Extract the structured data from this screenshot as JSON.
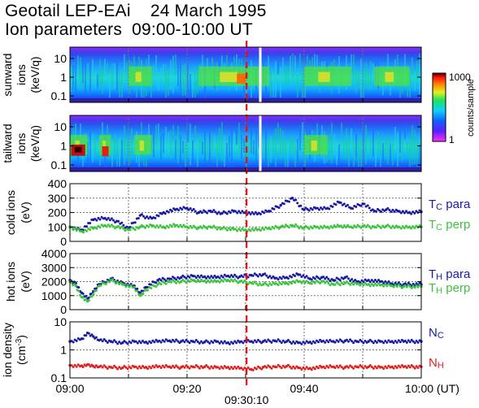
{
  "title": {
    "line1_instrument": "Geotail LEP-EAi",
    "line1_date": "24 March 1995",
    "line2_label": "Ion parameters",
    "line2_range": "09:00-10:00 UT"
  },
  "colors": {
    "para": "#1a1aa6",
    "perp": "#3cc43c",
    "n_cold": "#1a1aa6",
    "n_hot": "#e02020",
    "event_line": "#e01010"
  },
  "chart_data": [
    {
      "type": "heatmap",
      "panel": "sunward",
      "ylabel": [
        "sunward",
        "ions",
        "(keV/q)"
      ],
      "yscale": "log",
      "yticks": [
        "10",
        "1",
        "0.1"
      ],
      "x_range_min": [
        0,
        60
      ],
      "colorbar": {
        "label": "counts/sample",
        "ticks": [
          "1000",
          "1"
        ],
        "scale": "log",
        "range": [
          1,
          1000
        ]
      },
      "enhancement_min": [
        [
          10,
          14
        ],
        [
          22,
          34
        ],
        [
          40,
          48
        ],
        [
          52,
          58
        ]
      ]
    },
    {
      "type": "heatmap",
      "panel": "tailward",
      "ylabel": [
        "tailward",
        "ions",
        "(keV/q)"
      ],
      "yscale": "log",
      "yticks": [
        "10",
        "1",
        "0.1"
      ],
      "x_range_min": [
        0,
        60
      ],
      "enhancement_min": [
        [
          0,
          3
        ],
        [
          5,
          7
        ],
        [
          11,
          14
        ],
        [
          40,
          44
        ]
      ]
    },
    {
      "type": "scatter",
      "panel": "cold",
      "ylabel": [
        "cold ions",
        "(eV)"
      ],
      "ylim": [
        0,
        400
      ],
      "yticks": [
        "400",
        "300",
        "200",
        "100",
        "0"
      ],
      "series": [
        {
          "name": "Tc para",
          "sym": "T",
          "sub": "C",
          "suffix": "para",
          "color": "#1a1aa6",
          "x": [
            0,
            2,
            4,
            6,
            8,
            10,
            12,
            14,
            16,
            18,
            20,
            22,
            24,
            26,
            28,
            30,
            32,
            34,
            36,
            38,
            40,
            42,
            44,
            46,
            48,
            50,
            52,
            54,
            56,
            58,
            60
          ],
          "y": [
            100,
            80,
            150,
            160,
            140,
            90,
            180,
            160,
            200,
            220,
            230,
            200,
            210,
            195,
            210,
            200,
            190,
            210,
            250,
            300,
            220,
            230,
            230,
            270,
            230,
            260,
            210,
            220,
            210,
            200,
            205
          ]
        },
        {
          "name": "Tc perp",
          "sym": "T",
          "sub": "C",
          "suffix": "perp",
          "color": "#3cc43c",
          "x": [
            0,
            2,
            4,
            6,
            8,
            10,
            12,
            14,
            16,
            18,
            20,
            22,
            24,
            26,
            28,
            30,
            32,
            34,
            36,
            38,
            40,
            42,
            44,
            46,
            48,
            50,
            52,
            54,
            56,
            58,
            60
          ],
          "y": [
            100,
            70,
            90,
            110,
            100,
            80,
            100,
            110,
            100,
            110,
            100,
            95,
            100,
            90,
            85,
            80,
            80,
            90,
            100,
            110,
            95,
            100,
            100,
            105,
            100,
            105,
            100,
            105,
            100,
            100,
            100
          ]
        }
      ]
    },
    {
      "type": "scatter",
      "panel": "hot",
      "ylabel": [
        "hot ions",
        "(eV)"
      ],
      "ylim": [
        0,
        4000
      ],
      "yticks": [
        "4000",
        "3000",
        "2000",
        "1000",
        "0"
      ],
      "series": [
        {
          "name": "TH para",
          "sym": "T",
          "sub": "H",
          "suffix": "para",
          "color": "#1a1aa6",
          "x": [
            0,
            1,
            2,
            3,
            4,
            5,
            7,
            9,
            11,
            12,
            13,
            15,
            17,
            19,
            21,
            23,
            25,
            27,
            29,
            31,
            33,
            35,
            37,
            39,
            41,
            43,
            45,
            47,
            49,
            51,
            53,
            55,
            57,
            60
          ],
          "y": [
            2100,
            1900,
            1200,
            800,
            1300,
            1800,
            2200,
            1900,
            1700,
            1200,
            1600,
            2100,
            2200,
            2300,
            2400,
            2350,
            2300,
            2400,
            2350,
            2450,
            2500,
            2250,
            2300,
            2500,
            2200,
            2300,
            2100,
            2300,
            2000,
            2100,
            2000,
            1850,
            1800,
            1800
          ]
        },
        {
          "name": "TH perp",
          "sym": "T",
          "sub": "H",
          "suffix": "perp",
          "color": "#3cc43c",
          "x": [
            0,
            1,
            2,
            3,
            4,
            5,
            7,
            9,
            11,
            12,
            13,
            15,
            17,
            19,
            21,
            23,
            25,
            27,
            29,
            31,
            33,
            35,
            37,
            39,
            41,
            43,
            45,
            47,
            49,
            51,
            53,
            55,
            57,
            60
          ],
          "y": [
            2000,
            1700,
            900,
            600,
            1100,
            1700,
            2100,
            1800,
            1600,
            1000,
            1400,
            1800,
            2000,
            2000,
            2100,
            2050,
            2000,
            2100,
            2000,
            1900,
            1800,
            1850,
            1900,
            2000,
            1900,
            2000,
            1800,
            1900,
            1850,
            1800,
            1750,
            1700,
            1650,
            1650
          ]
        }
      ]
    },
    {
      "type": "scatter",
      "panel": "density",
      "ylabel": [
        "ion density",
        "(cm",
        "-3",
        ")"
      ],
      "yscale": "log",
      "ylim": [
        0.1,
        10
      ],
      "yticks": [
        "10",
        "1",
        "0.1"
      ],
      "series": [
        {
          "name": "Nc",
          "sym": "N",
          "sub": "C",
          "suffix": "",
          "color": "#1a1aa6",
          "x": [
            0,
            2,
            3,
            4,
            5,
            7,
            9,
            11,
            13,
            15,
            17,
            19,
            21,
            23,
            25,
            27,
            29,
            31,
            33,
            35,
            37,
            39,
            41,
            43,
            45,
            47,
            49,
            51,
            53,
            55,
            57,
            60
          ],
          "y": [
            2,
            2.5,
            4,
            3,
            2.2,
            2,
            1.8,
            2,
            1.9,
            2,
            2.1,
            2,
            2,
            1.9,
            2,
            1.8,
            1.9,
            2,
            2,
            2.1,
            2,
            1.8,
            1.9,
            2,
            2,
            2.1,
            2,
            2,
            2,
            2,
            2,
            2
          ]
        },
        {
          "name": "NH",
          "sym": "N",
          "sub": "H",
          "suffix": "",
          "color": "#e02020",
          "x": [
            0,
            2,
            3,
            4,
            5,
            7,
            9,
            11,
            13,
            15,
            17,
            19,
            21,
            23,
            25,
            27,
            29,
            31,
            33,
            35,
            37,
            39,
            41,
            43,
            45,
            47,
            49,
            51,
            53,
            55,
            57,
            60
          ],
          "y": [
            0.28,
            0.27,
            0.3,
            0.26,
            0.25,
            0.24,
            0.23,
            0.25,
            0.24,
            0.25,
            0.25,
            0.24,
            0.25,
            0.25,
            0.24,
            0.24,
            0.22,
            0.2,
            0.24,
            0.25,
            0.26,
            0.23,
            0.22,
            0.24,
            0.25,
            0.24,
            0.25,
            0.25,
            0.24,
            0.25,
            0.25,
            0.25
          ]
        }
      ]
    }
  ],
  "x_axis": {
    "ticks": [
      {
        "value_min": 0,
        "label": "09:00"
      },
      {
        "value_min": 20,
        "label": "09:20"
      },
      {
        "value_min": 40,
        "label": "09:40"
      },
      {
        "value_min": 60,
        "label": "10:00 (UT)"
      }
    ],
    "gridline_min": [
      10,
      20,
      30,
      40,
      50
    ]
  },
  "event": {
    "time_min": 30.17,
    "label": "09:30:10"
  }
}
